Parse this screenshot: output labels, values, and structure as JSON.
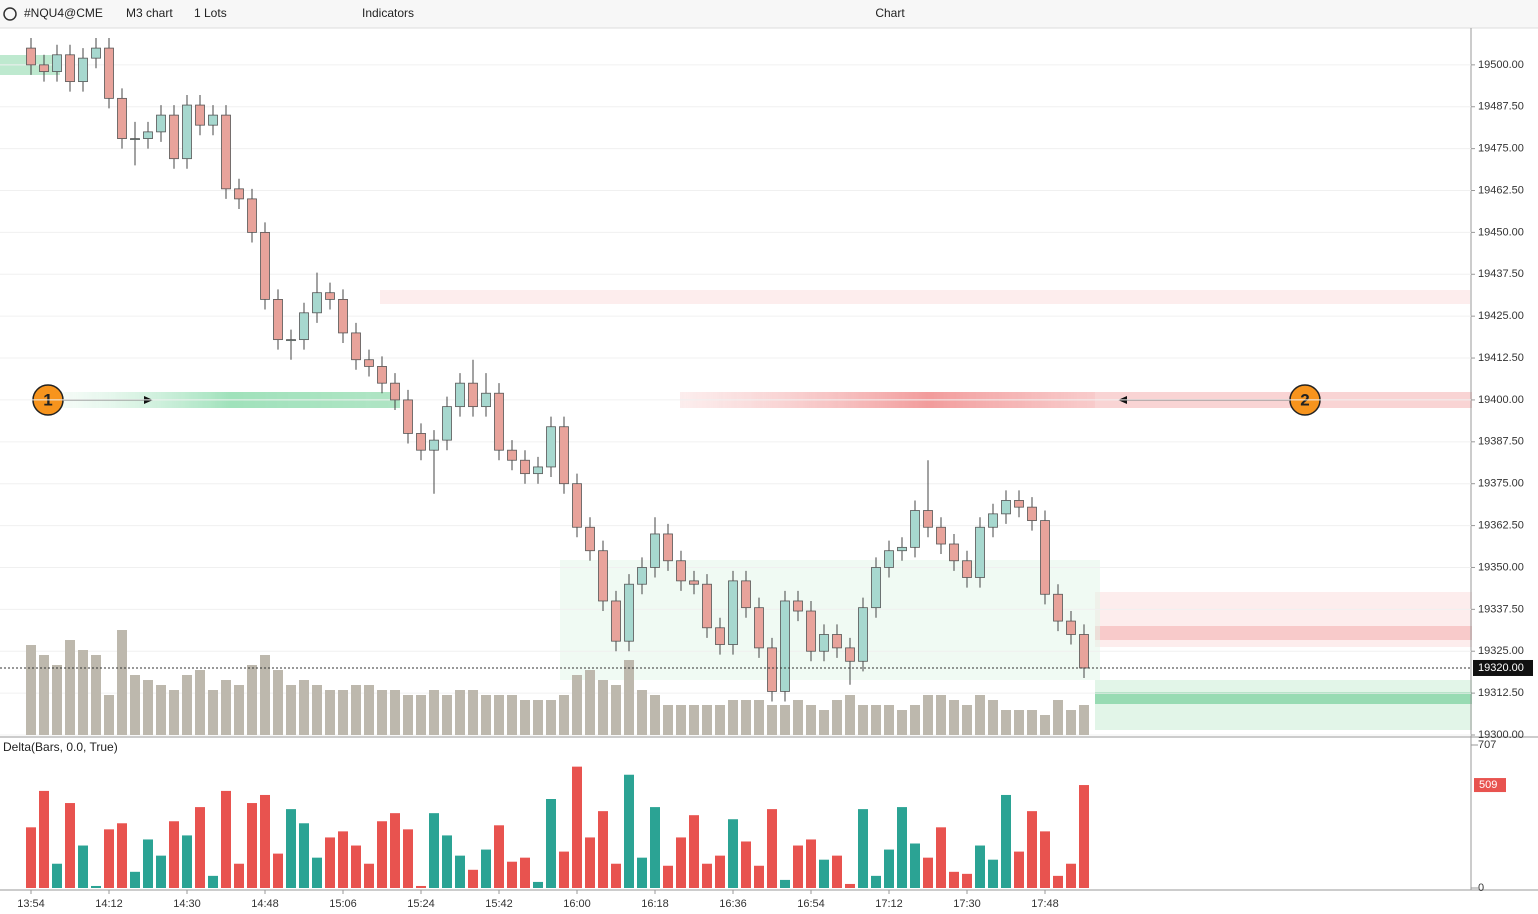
{
  "toolbar": {
    "symbol": "#NQU4@CME",
    "timeframe": "M3 chart",
    "lots": "1 Lots",
    "indicators": "Indicators",
    "window_title": "Chart"
  },
  "chart_data": [
    {
      "type": "candlestick",
      "open": [
        19505,
        19500,
        19498,
        19503,
        19495,
        19502,
        19505,
        19490,
        19478,
        19478,
        19480,
        19485,
        19472,
        19488,
        19482,
        19485,
        19463,
        19460,
        19450,
        19430,
        19418,
        19418,
        19426,
        19432,
        19430,
        19420,
        19412,
        19410,
        19405,
        19400,
        19390,
        19385,
        19388,
        19398,
        19405,
        19398,
        19402,
        19385,
        19382,
        19378,
        19380,
        19392,
        19375,
        19362,
        19355,
        19340,
        19328,
        19345,
        19350,
        19360,
        19352,
        19346,
        19345,
        19332,
        19327,
        19346,
        19338,
        19326,
        19313,
        19340,
        19337,
        19325,
        19330,
        19326,
        19322,
        19338,
        19350,
        19355,
        19356,
        19367,
        19362,
        19357,
        19352,
        19347,
        19362,
        19366,
        19370,
        19368,
        19364,
        19342,
        19334,
        19330
      ],
      "high": [
        19508,
        19503,
        19506,
        19506,
        19505,
        19508,
        19508,
        19493,
        19483,
        19483,
        19488,
        19488,
        19491,
        19491,
        19488,
        19488,
        19466,
        19463,
        19453,
        19433,
        19421,
        19429,
        19438,
        19435,
        19433,
        19423,
        19415,
        19413,
        19408,
        19403,
        19393,
        19391,
        19401,
        19408,
        19412,
        19408,
        19405,
        19388,
        19385,
        19383,
        19395,
        19395,
        19378,
        19365,
        19358,
        19343,
        19348,
        19353,
        19365,
        19363,
        19355,
        19349,
        19348,
        19335,
        19349,
        19349,
        19341,
        19329,
        19343,
        19343,
        19340,
        19333,
        19333,
        19329,
        19341,
        19353,
        19358,
        19359,
        19370,
        19382,
        19365,
        19360,
        19355,
        19365,
        19369,
        19373,
        19373,
        19371,
        19367,
        19345,
        19337,
        19333
      ],
      "low": [
        19497,
        19495,
        19495,
        19492,
        19492,
        19499,
        19487,
        19475,
        19470,
        19475,
        19477,
        19469,
        19469,
        19479,
        19479,
        19460,
        19457,
        19447,
        19427,
        19415,
        19412,
        19415,
        19423,
        19427,
        19417,
        19409,
        19407,
        19402,
        19397,
        19387,
        19382,
        19372,
        19385,
        19395,
        19395,
        19395,
        19382,
        19379,
        19375,
        19375,
        19377,
        19372,
        19359,
        19352,
        19337,
        19325,
        19325,
        19342,
        19347,
        19349,
        19343,
        19342,
        19329,
        19324,
        19324,
        19335,
        19323,
        19310,
        19310,
        19334,
        19322,
        19322,
        19323,
        19315,
        19319,
        19335,
        19347,
        19352,
        19353,
        19359,
        19354,
        19349,
        19344,
        19344,
        19359,
        19363,
        19365,
        19361,
        19339,
        19331,
        19327,
        19317
      ],
      "close": [
        19500,
        19498,
        19503,
        19495,
        19502,
        19505,
        19490,
        19478,
        19478,
        19480,
        19485,
        19472,
        19488,
        19482,
        19485,
        19463,
        19460,
        19450,
        19430,
        19418,
        19418,
        19426,
        19432,
        19430,
        19420,
        19412,
        19410,
        19405,
        19400,
        19390,
        19385,
        19388,
        19398,
        19405,
        19398,
        19402,
        19385,
        19382,
        19378,
        19380,
        19392,
        19375,
        19362,
        19355,
        19340,
        19328,
        19345,
        19350,
        19360,
        19352,
        19346,
        19345,
        19332,
        19327,
        19346,
        19338,
        19326,
        19313,
        19340,
        19337,
        19325,
        19330,
        19326,
        19322,
        19338,
        19350,
        19355,
        19356,
        19367,
        19362,
        19357,
        19352,
        19347,
        19362,
        19366,
        19370,
        19368,
        19364,
        19342,
        19334,
        19330,
        19320
      ],
      "up_color": "#a7d8cf",
      "down_color": "#e8a39b",
      "volume": [
        90,
        80,
        70,
        95,
        85,
        80,
        40,
        105,
        60,
        55,
        50,
        45,
        60,
        65,
        45,
        55,
        50,
        70,
        80,
        65,
        50,
        55,
        50,
        45,
        45,
        50,
        50,
        45,
        45,
        40,
        40,
        45,
        40,
        45,
        45,
        40,
        40,
        40,
        35,
        35,
        35,
        40,
        60,
        65,
        55,
        50,
        75,
        45,
        40,
        30,
        30,
        30,
        30,
        30,
        35,
        35,
        35,
        30,
        30,
        35,
        30,
        25,
        35,
        40,
        30,
        30,
        30,
        25,
        30,
        40,
        40,
        35,
        30,
        40,
        35,
        25,
        25,
        25,
        20,
        35,
        25,
        30
      ],
      "volume_lim": [
        0,
        707
      ],
      "volume_color": "#bdb8ad",
      "ylim": [
        19300,
        19511
      ],
      "yticks": [
        {
          "value": 19500,
          "label": "19500.00"
        },
        {
          "value": 19487.5,
          "label": "19487.50"
        },
        {
          "value": 19475,
          "label": "19475.00"
        },
        {
          "value": 19462.5,
          "label": "19462.50"
        },
        {
          "value": 19450,
          "label": "19450.00"
        },
        {
          "value": 19437.5,
          "label": "19437.50"
        },
        {
          "value": 19425,
          "label": "19425.00"
        },
        {
          "value": 19412.5,
          "label": "19412.50"
        },
        {
          "value": 19400,
          "label": "19400.00"
        },
        {
          "value": 19387.5,
          "label": "19387.50"
        },
        {
          "value": 19375,
          "label": "19375.00"
        },
        {
          "value": 19362.5,
          "label": "19362.50"
        },
        {
          "value": 19350,
          "label": "19350.00"
        },
        {
          "value": 19337.5,
          "label": "19337.50"
        },
        {
          "value": 19325,
          "label": "19325.00"
        },
        {
          "value": 19312.5,
          "label": "19312.50"
        },
        {
          "value": 19300,
          "label": "19300.00"
        }
      ],
      "last_price": {
        "value": 19320,
        "label": "19320.00"
      },
      "grid": true,
      "annotations": [
        "1",
        "2"
      ]
    },
    {
      "type": "bar",
      "title": "Delta(Bars, 0.0, True)",
      "categories": [
        "13:54",
        null,
        null,
        null,
        null,
        null,
        "14:12",
        null,
        null,
        null,
        null,
        null,
        "14:30",
        null,
        null,
        null,
        null,
        null,
        "14:48",
        null,
        null,
        null,
        null,
        null,
        "15:06",
        null,
        null,
        null,
        null,
        null,
        "15:24",
        null,
        null,
        null,
        null,
        null,
        "15:42",
        null,
        null,
        null,
        null,
        null,
        "16:00",
        null,
        null,
        null,
        null,
        null,
        "16:18",
        null,
        null,
        null,
        null,
        null,
        "16:36",
        null,
        null,
        null,
        null,
        null,
        "16:54",
        null,
        null,
        null,
        null,
        null,
        "17:12",
        null,
        null,
        null,
        null,
        null,
        "17:30",
        null,
        null,
        null,
        null,
        null,
        "17:48",
        null,
        null,
        null
      ],
      "values": [
        300,
        480,
        120,
        420,
        210,
        10,
        290,
        320,
        80,
        240,
        160,
        330,
        260,
        400,
        60,
        480,
        120,
        420,
        460,
        170,
        390,
        320,
        150,
        250,
        280,
        210,
        120,
        330,
        370,
        290,
        10,
        370,
        260,
        160,
        90,
        190,
        310,
        130,
        150,
        30,
        440,
        180,
        600,
        250,
        380,
        120,
        560,
        150,
        400,
        110,
        250,
        360,
        120,
        160,
        340,
        230,
        110,
        390,
        40,
        210,
        240,
        140,
        160,
        20,
        390,
        60,
        190,
        400,
        220,
        150,
        300,
        80,
        70,
        210,
        140,
        460,
        180,
        380,
        280,
        60,
        120,
        509
      ],
      "up_color": "#2ba394",
      "down_color": "#e8534f",
      "ylim": [
        0,
        707
      ],
      "yticks": [
        0,
        707
      ]
    }
  ]
}
